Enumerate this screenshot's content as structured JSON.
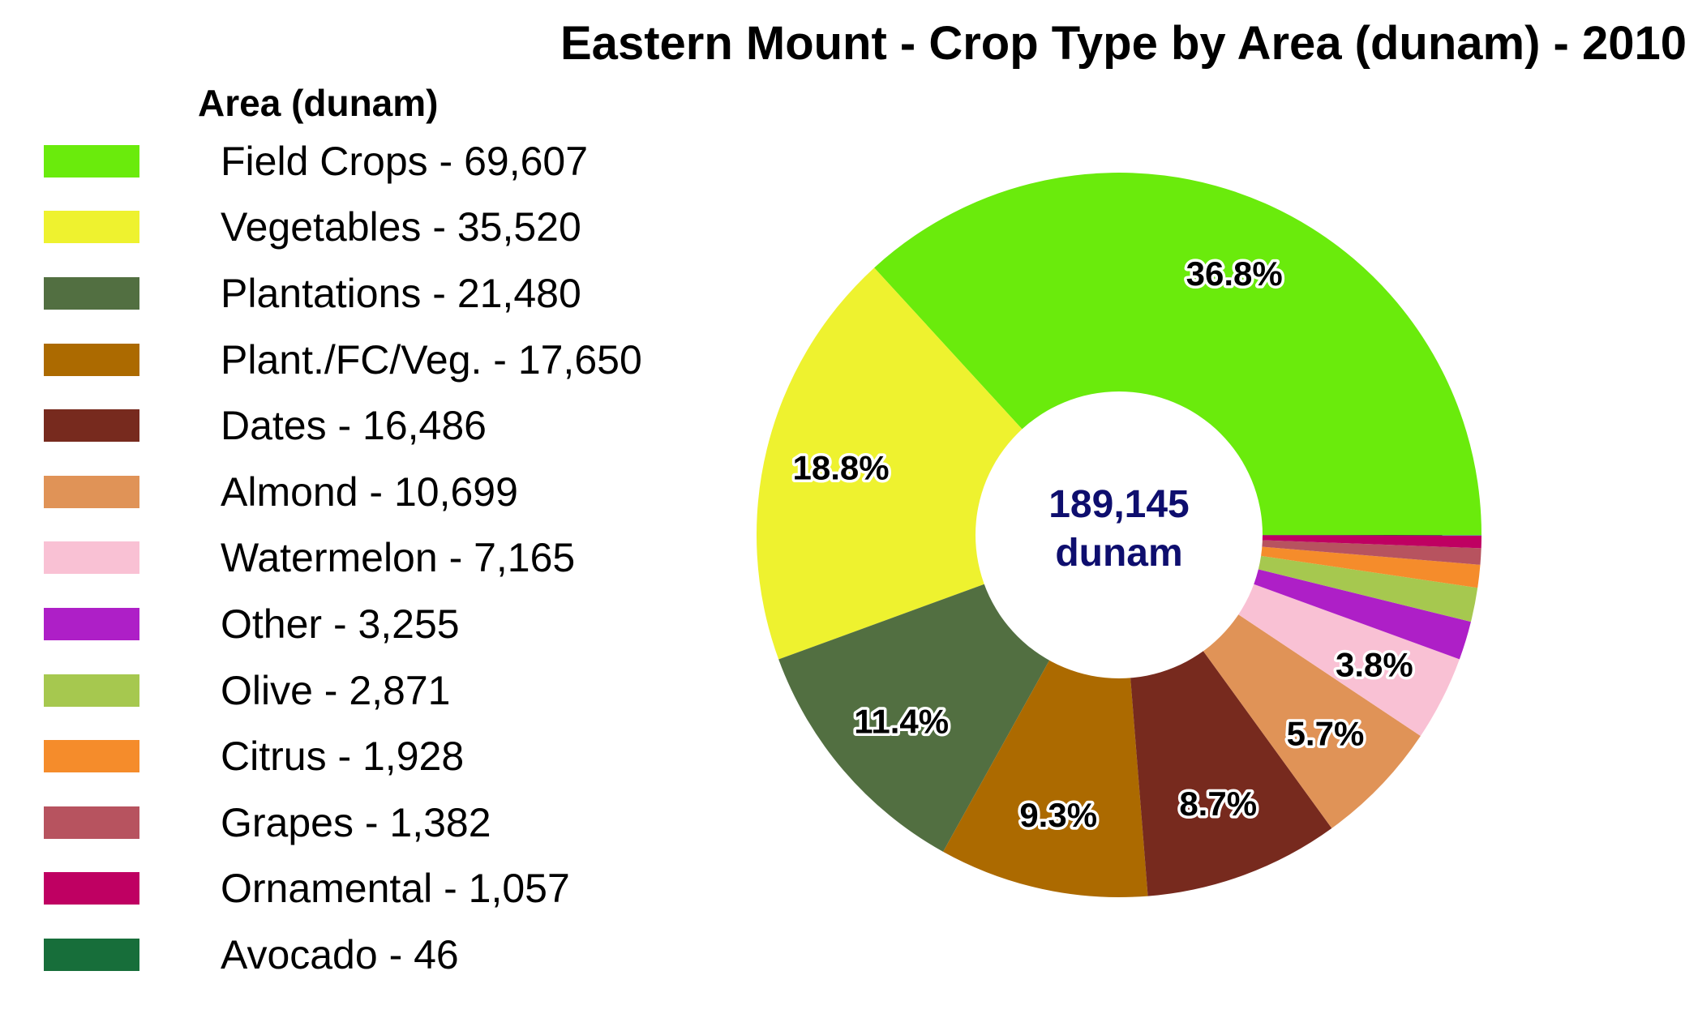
{
  "chart_data": {
    "type": "pie",
    "title": "Eastern Mount - Crop Type by Area (dunam) - 2010",
    "legend_title": "Area (dunam)",
    "legend_placement": "left",
    "center_label": [
      "189,145",
      "dunam"
    ],
    "slices": [
      {
        "label": "Field Crops - 69,607",
        "value": 69607,
        "color": "#6aeb0c",
        "pct": "36.8%"
      },
      {
        "label": "Vegetables - 35,520",
        "value": 35520,
        "color": "#eef22f",
        "pct": "18.8%"
      },
      {
        "label": "Plantations - 21,480",
        "value": 21480,
        "color": "#526f41",
        "pct": "11.4%"
      },
      {
        "label": "Plant./FC/Veg. - 17,650",
        "value": 17650,
        "color": "#ac6a00",
        "pct": "9.3%"
      },
      {
        "label": "Dates - 16,486",
        "value": 16486,
        "color": "#772a1e",
        "pct": "8.7%"
      },
      {
        "label": "Almond - 10,699",
        "value": 10699,
        "color": "#e09357",
        "pct": "5.7%"
      },
      {
        "label": "Watermelon - 7,165",
        "value": 7165,
        "color": "#f9c1d4",
        "pct": "3.8%"
      },
      {
        "label": "Other - 3,255",
        "value": 3255,
        "color": "#ae1fc7",
        "pct": ""
      },
      {
        "label": "Olive - 2,871",
        "value": 2871,
        "color": "#a6c84f",
        "pct": ""
      },
      {
        "label": "Citrus - 1,928",
        "value": 1928,
        "color": "#f58c2b",
        "pct": ""
      },
      {
        "label": "Grapes - 1,382",
        "value": 1382,
        "color": "#b7535f",
        "pct": ""
      },
      {
        "label": "Ornamental - 1,057",
        "value": 1057,
        "color": "#bf0062",
        "pct": ""
      },
      {
        "label": "Avocado - 46",
        "value": 46,
        "color": "#176e3a",
        "pct": ""
      }
    ]
  }
}
